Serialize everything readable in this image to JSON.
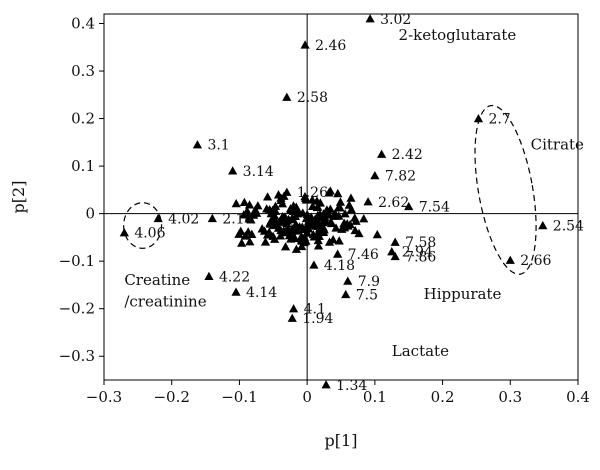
{
  "chart_data": {
    "type": "scatter",
    "title": "",
    "xlabel": "p[1]",
    "ylabel": "p[2]",
    "xlim": [
      -0.3,
      0.4
    ],
    "ylim": [
      -0.35,
      0.42
    ],
    "xticks": [
      "−0.3",
      "−0.2",
      "−0.1",
      "0",
      "0.1",
      "0.2",
      "0.3",
      "0.4"
    ],
    "yticks": [
      "0.4",
      "0.3",
      "0.2",
      "0.1",
      "0",
      "−0.1",
      "−0.2",
      "−0.3"
    ],
    "xtick_values": [
      -0.3,
      -0.2,
      -0.1,
      0,
      0.1,
      0.2,
      0.3,
      0.4
    ],
    "ytick_values": [
      0.4,
      0.3,
      0.2,
      0.1,
      0,
      -0.1,
      -0.2,
      -0.3
    ],
    "grid": false,
    "marker": "triangle",
    "labeled_points": [
      {
        "label": "3.02",
        "x": 0.093,
        "y": 0.41
      },
      {
        "label": "2.46",
        "x": -0.003,
        "y": 0.355
      },
      {
        "label": "2.58",
        "x": -0.03,
        "y": 0.245
      },
      {
        "label": "3.1",
        "x": -0.162,
        "y": 0.145
      },
      {
        "label": "3.14",
        "x": -0.11,
        "y": 0.09
      },
      {
        "label": "2.42",
        "x": 0.11,
        "y": 0.125
      },
      {
        "label": "7.82",
        "x": 0.1,
        "y": 0.08
      },
      {
        "label": "1.26",
        "x": -0.03,
        "y": 0.045
      },
      {
        "label": "2.62",
        "x": 0.09,
        "y": 0.025
      },
      {
        "label": "7.54",
        "x": 0.15,
        "y": 0.015
      },
      {
        "label": "2.7",
        "x": 0.253,
        "y": 0.2
      },
      {
        "label": "2.54",
        "x": 0.348,
        "y": -0.025
      },
      {
        "label": "2.66",
        "x": 0.3,
        "y": -0.098
      },
      {
        "label": "4.02",
        "x": -0.22,
        "y": -0.01
      },
      {
        "label": "4.06",
        "x": -0.27,
        "y": -0.04
      },
      {
        "label": "2.14",
        "x": -0.14,
        "y": -0.01
      },
      {
        "label": "7.58",
        "x": 0.13,
        "y": -0.06
      },
      {
        "label": "2.94",
        "x": 0.125,
        "y": -0.08
      },
      {
        "label": "7.86",
        "x": 0.13,
        "y": -0.09
      },
      {
        "label": "7.46",
        "x": 0.045,
        "y": -0.085
      },
      {
        "label": "4.18",
        "x": 0.01,
        "y": -0.108
      },
      {
        "label": "4.22",
        "x": -0.145,
        "y": -0.132
      },
      {
        "label": "7.9",
        "x": 0.06,
        "y": -0.142
      },
      {
        "label": "7.5",
        "x": 0.057,
        "y": -0.17
      },
      {
        "label": "4.14",
        "x": -0.105,
        "y": -0.165
      },
      {
        "label": "4.1",
        "x": -0.02,
        "y": -0.2
      },
      {
        "label": "1.94",
        "x": -0.022,
        "y": -0.22
      },
      {
        "label": "1.34",
        "x": 0.028,
        "y": -0.36
      }
    ],
    "annotations": [
      {
        "text": "2-ketoglutarate",
        "x": 0.135,
        "y": 0.365
      },
      {
        "text": "Citrate",
        "x": 0.33,
        "y": 0.135
      },
      {
        "text": "Creatine",
        "x": -0.27,
        "y": -0.15
      },
      {
        "text": "/creatinine",
        "x": -0.27,
        "y": -0.195
      },
      {
        "text": "Hippurate",
        "x": 0.172,
        "y": -0.18
      },
      {
        "text": "Lactate",
        "x": 0.125,
        "y": -0.3
      }
    ],
    "ellipses": [
      {
        "name": "creatine",
        "cx": -0.243,
        "cy": -0.025,
        "rx": 0.028,
        "ry": 0.048,
        "rot": 0
      },
      {
        "name": "citrate",
        "cx": 0.293,
        "cy": 0.05,
        "rx": 0.04,
        "ry": 0.18,
        "rot": -10
      }
    ]
  }
}
